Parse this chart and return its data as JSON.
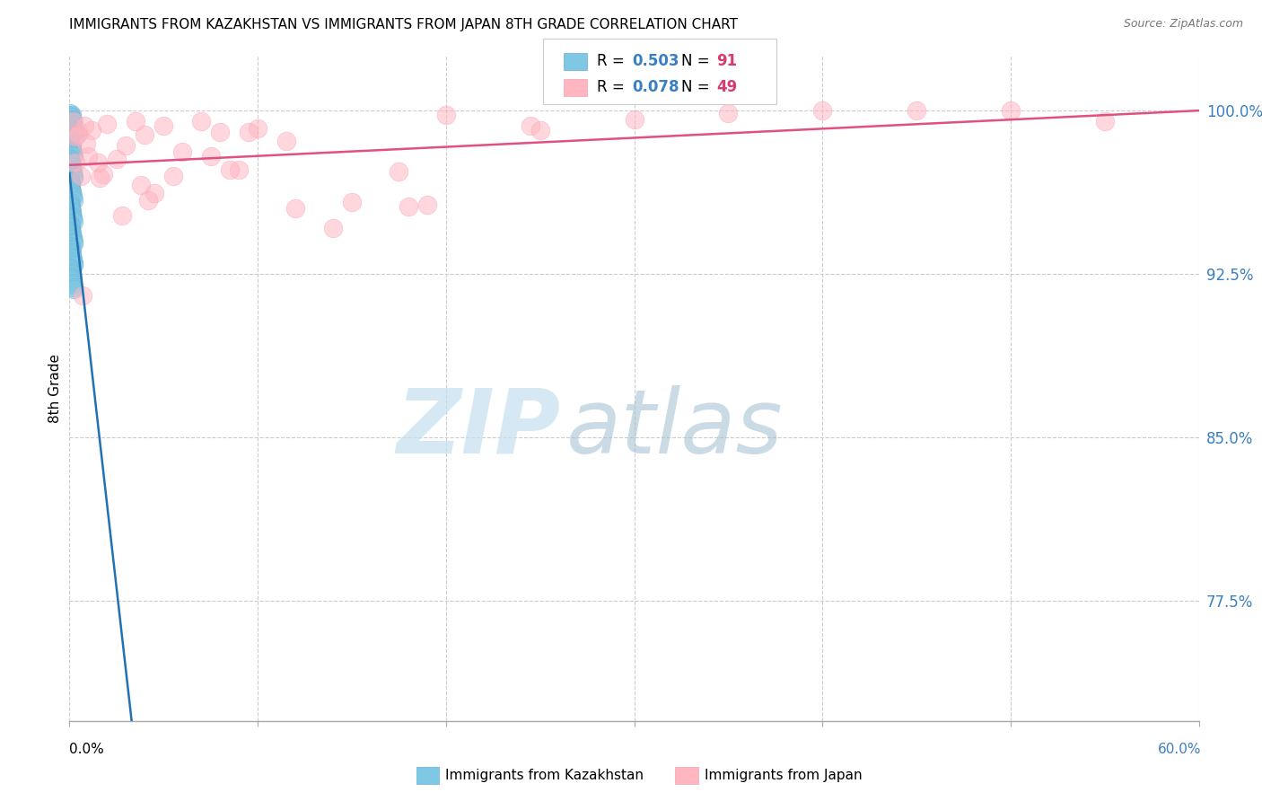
{
  "title": "IMMIGRANTS FROM KAZAKHSTAN VS IMMIGRANTS FROM JAPAN 8TH GRADE CORRELATION CHART",
  "source": "Source: ZipAtlas.com",
  "ylabel": "8th Grade",
  "yticks": [
    77.5,
    85.0,
    92.5,
    100.0
  ],
  "ytick_labels": [
    "77.5%",
    "85.0%",
    "92.5%",
    "100.0%"
  ],
  "xtick_positions": [
    0,
    10,
    20,
    30,
    40,
    50,
    60
  ],
  "xmin": 0.0,
  "xmax": 60.0,
  "ymin": 72.0,
  "ymax": 102.5,
  "r_kaz": "0.503",
  "n_kaz": "91",
  "r_jpn": "0.078",
  "n_jpn": "49",
  "color_kaz": "#7ec8e3",
  "color_kaz_edge": "#6baed6",
  "color_jpn": "#ffb6c1",
  "color_jpn_edge": "#f4a0b5",
  "color_kaz_line": "#2171b5",
  "color_jpn_line": "#e05080",
  "color_r_text": "#3a7fc1",
  "color_n_text": "#d63d6e",
  "color_ytick": "#3a7fc1",
  "label_kaz": "Immigrants from Kazakhstan",
  "label_jpn": "Immigrants from Japan",
  "kazakhstan_x": [
    0.02,
    0.03,
    0.04,
    0.05,
    0.06,
    0.07,
    0.08,
    0.09,
    0.1,
    0.11,
    0.12,
    0.13,
    0.14,
    0.15,
    0.16,
    0.17,
    0.18,
    0.19,
    0.2,
    0.21,
    0.03,
    0.05,
    0.07,
    0.09,
    0.11,
    0.13,
    0.15,
    0.17,
    0.19,
    0.21,
    0.04,
    0.06,
    0.08,
    0.1,
    0.12,
    0.14,
    0.16,
    0.18,
    0.2,
    0.22,
    0.02,
    0.04,
    0.06,
    0.08,
    0.1,
    0.12,
    0.14,
    0.16,
    0.18,
    0.2,
    0.03,
    0.05,
    0.07,
    0.09,
    0.11,
    0.13,
    0.15,
    0.17,
    0.19,
    0.21,
    0.04,
    0.06,
    0.08,
    0.1,
    0.12,
    0.14,
    0.16,
    0.18,
    0.2,
    0.22,
    0.05,
    0.07,
    0.09,
    0.11,
    0.13,
    0.15,
    0.17,
    0.19,
    0.21,
    0.23,
    0.02,
    0.04,
    0.06,
    0.08,
    0.1,
    0.12,
    0.14,
    0.16,
    0.18,
    0.2,
    0.22
  ],
  "kazakhstan_y": [
    99.8,
    99.9,
    99.7,
    99.6,
    99.5,
    99.4,
    99.3,
    99.2,
    99.1,
    99.0,
    99.8,
    99.7,
    99.6,
    99.5,
    99.4,
    99.3,
    99.2,
    99.1,
    99.0,
    98.9,
    98.8,
    98.7,
    98.6,
    98.5,
    98.4,
    98.3,
    98.2,
    98.1,
    98.0,
    97.9,
    97.8,
    97.7,
    97.6,
    97.5,
    97.4,
    97.3,
    97.2,
    97.1,
    97.0,
    96.9,
    96.8,
    96.7,
    96.6,
    96.5,
    96.4,
    96.3,
    96.2,
    96.1,
    96.0,
    95.9,
    95.8,
    95.7,
    95.6,
    95.5,
    95.4,
    95.3,
    95.2,
    95.1,
    95.0,
    94.9,
    94.8,
    94.7,
    94.6,
    94.5,
    94.4,
    94.3,
    94.2,
    94.1,
    94.0,
    93.9,
    93.8,
    93.7,
    93.6,
    93.5,
    93.4,
    93.3,
    93.2,
    93.1,
    93.0,
    92.9,
    92.8,
    92.7,
    92.6,
    92.5,
    92.4,
    92.3,
    92.2,
    92.1,
    92.0,
    91.9,
    91.8
  ],
  "japan_x": [
    0.2,
    0.5,
    0.8,
    1.2,
    1.5,
    2.0,
    2.5,
    3.0,
    3.5,
    4.0,
    4.5,
    5.0,
    6.0,
    7.0,
    8.0,
    9.0,
    10.0,
    11.5,
    14.0,
    17.5,
    20.0,
    24.5,
    30.0,
    35.0,
    40.0,
    45.0,
    50.0,
    55.0,
    0.3,
    0.6,
    1.0,
    1.8,
    2.8,
    3.8,
    5.5,
    7.5,
    9.5,
    12.0,
    15.0,
    19.0,
    25.0,
    0.4,
    0.9,
    1.6,
    4.2,
    8.5,
    18.0,
    0.3,
    0.7
  ],
  "japan_y": [
    99.5,
    99.0,
    99.3,
    99.1,
    97.6,
    99.4,
    97.8,
    98.4,
    99.5,
    98.9,
    96.2,
    99.3,
    98.1,
    99.5,
    99.0,
    97.3,
    99.2,
    98.6,
    94.6,
    97.2,
    99.8,
    99.3,
    99.6,
    99.9,
    100.0,
    100.0,
    100.0,
    99.5,
    98.8,
    97.0,
    97.9,
    97.1,
    95.2,
    96.6,
    97.0,
    97.9,
    99.0,
    95.5,
    95.8,
    95.7,
    99.1,
    98.9,
    98.5,
    96.9,
    95.9,
    97.3,
    95.6,
    97.6,
    91.5
  ]
}
